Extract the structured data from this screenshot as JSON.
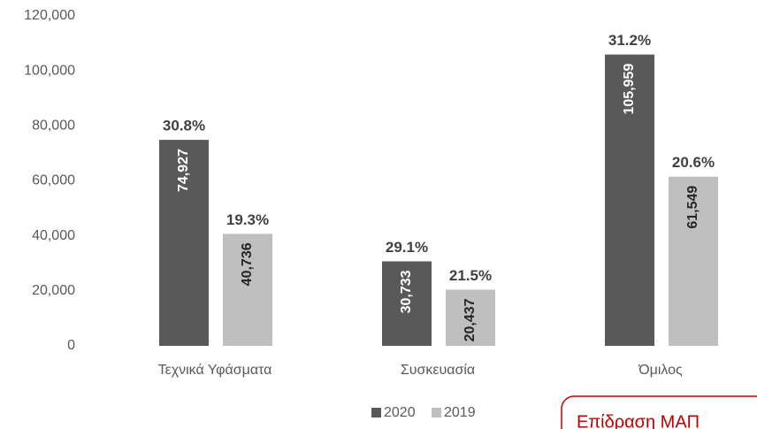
{
  "chart_data": {
    "type": "bar",
    "categories": [
      "Τεχνικά Υφάσματα",
      "Συσκευασία",
      "Όμιλος"
    ],
    "series": [
      {
        "name": "2020",
        "color": "#595959",
        "values": [
          74927,
          30733,
          105959
        ],
        "value_labels": [
          "74,927",
          "30,733",
          "105,959"
        ],
        "annotations": [
          "30.8%",
          "29.1%",
          "31.2%"
        ]
      },
      {
        "name": "2019",
        "color": "#bfbfbf",
        "values": [
          40736,
          20437,
          61549
        ],
        "value_labels": [
          "40,736",
          "20,437",
          "61,549"
        ],
        "annotations": [
          "19.3%",
          "21.5%",
          "20.6%"
        ]
      }
    ],
    "ylim": [
      0,
      120000
    ],
    "yticks": [
      0,
      {
        "value": 20000,
        "label": "20,000"
      },
      {
        "value": 40000,
        "label": "40,000"
      },
      {
        "value": 60000,
        "label": "60,000"
      },
      {
        "value": 80000,
        "label": "80,000"
      },
      {
        "value": 100000,
        "label": "100,000"
      },
      {
        "value": 120000,
        "label": "120,000"
      }
    ],
    "legend": "bottom",
    "callout": "Επίδραση ΜΑΠ"
  }
}
